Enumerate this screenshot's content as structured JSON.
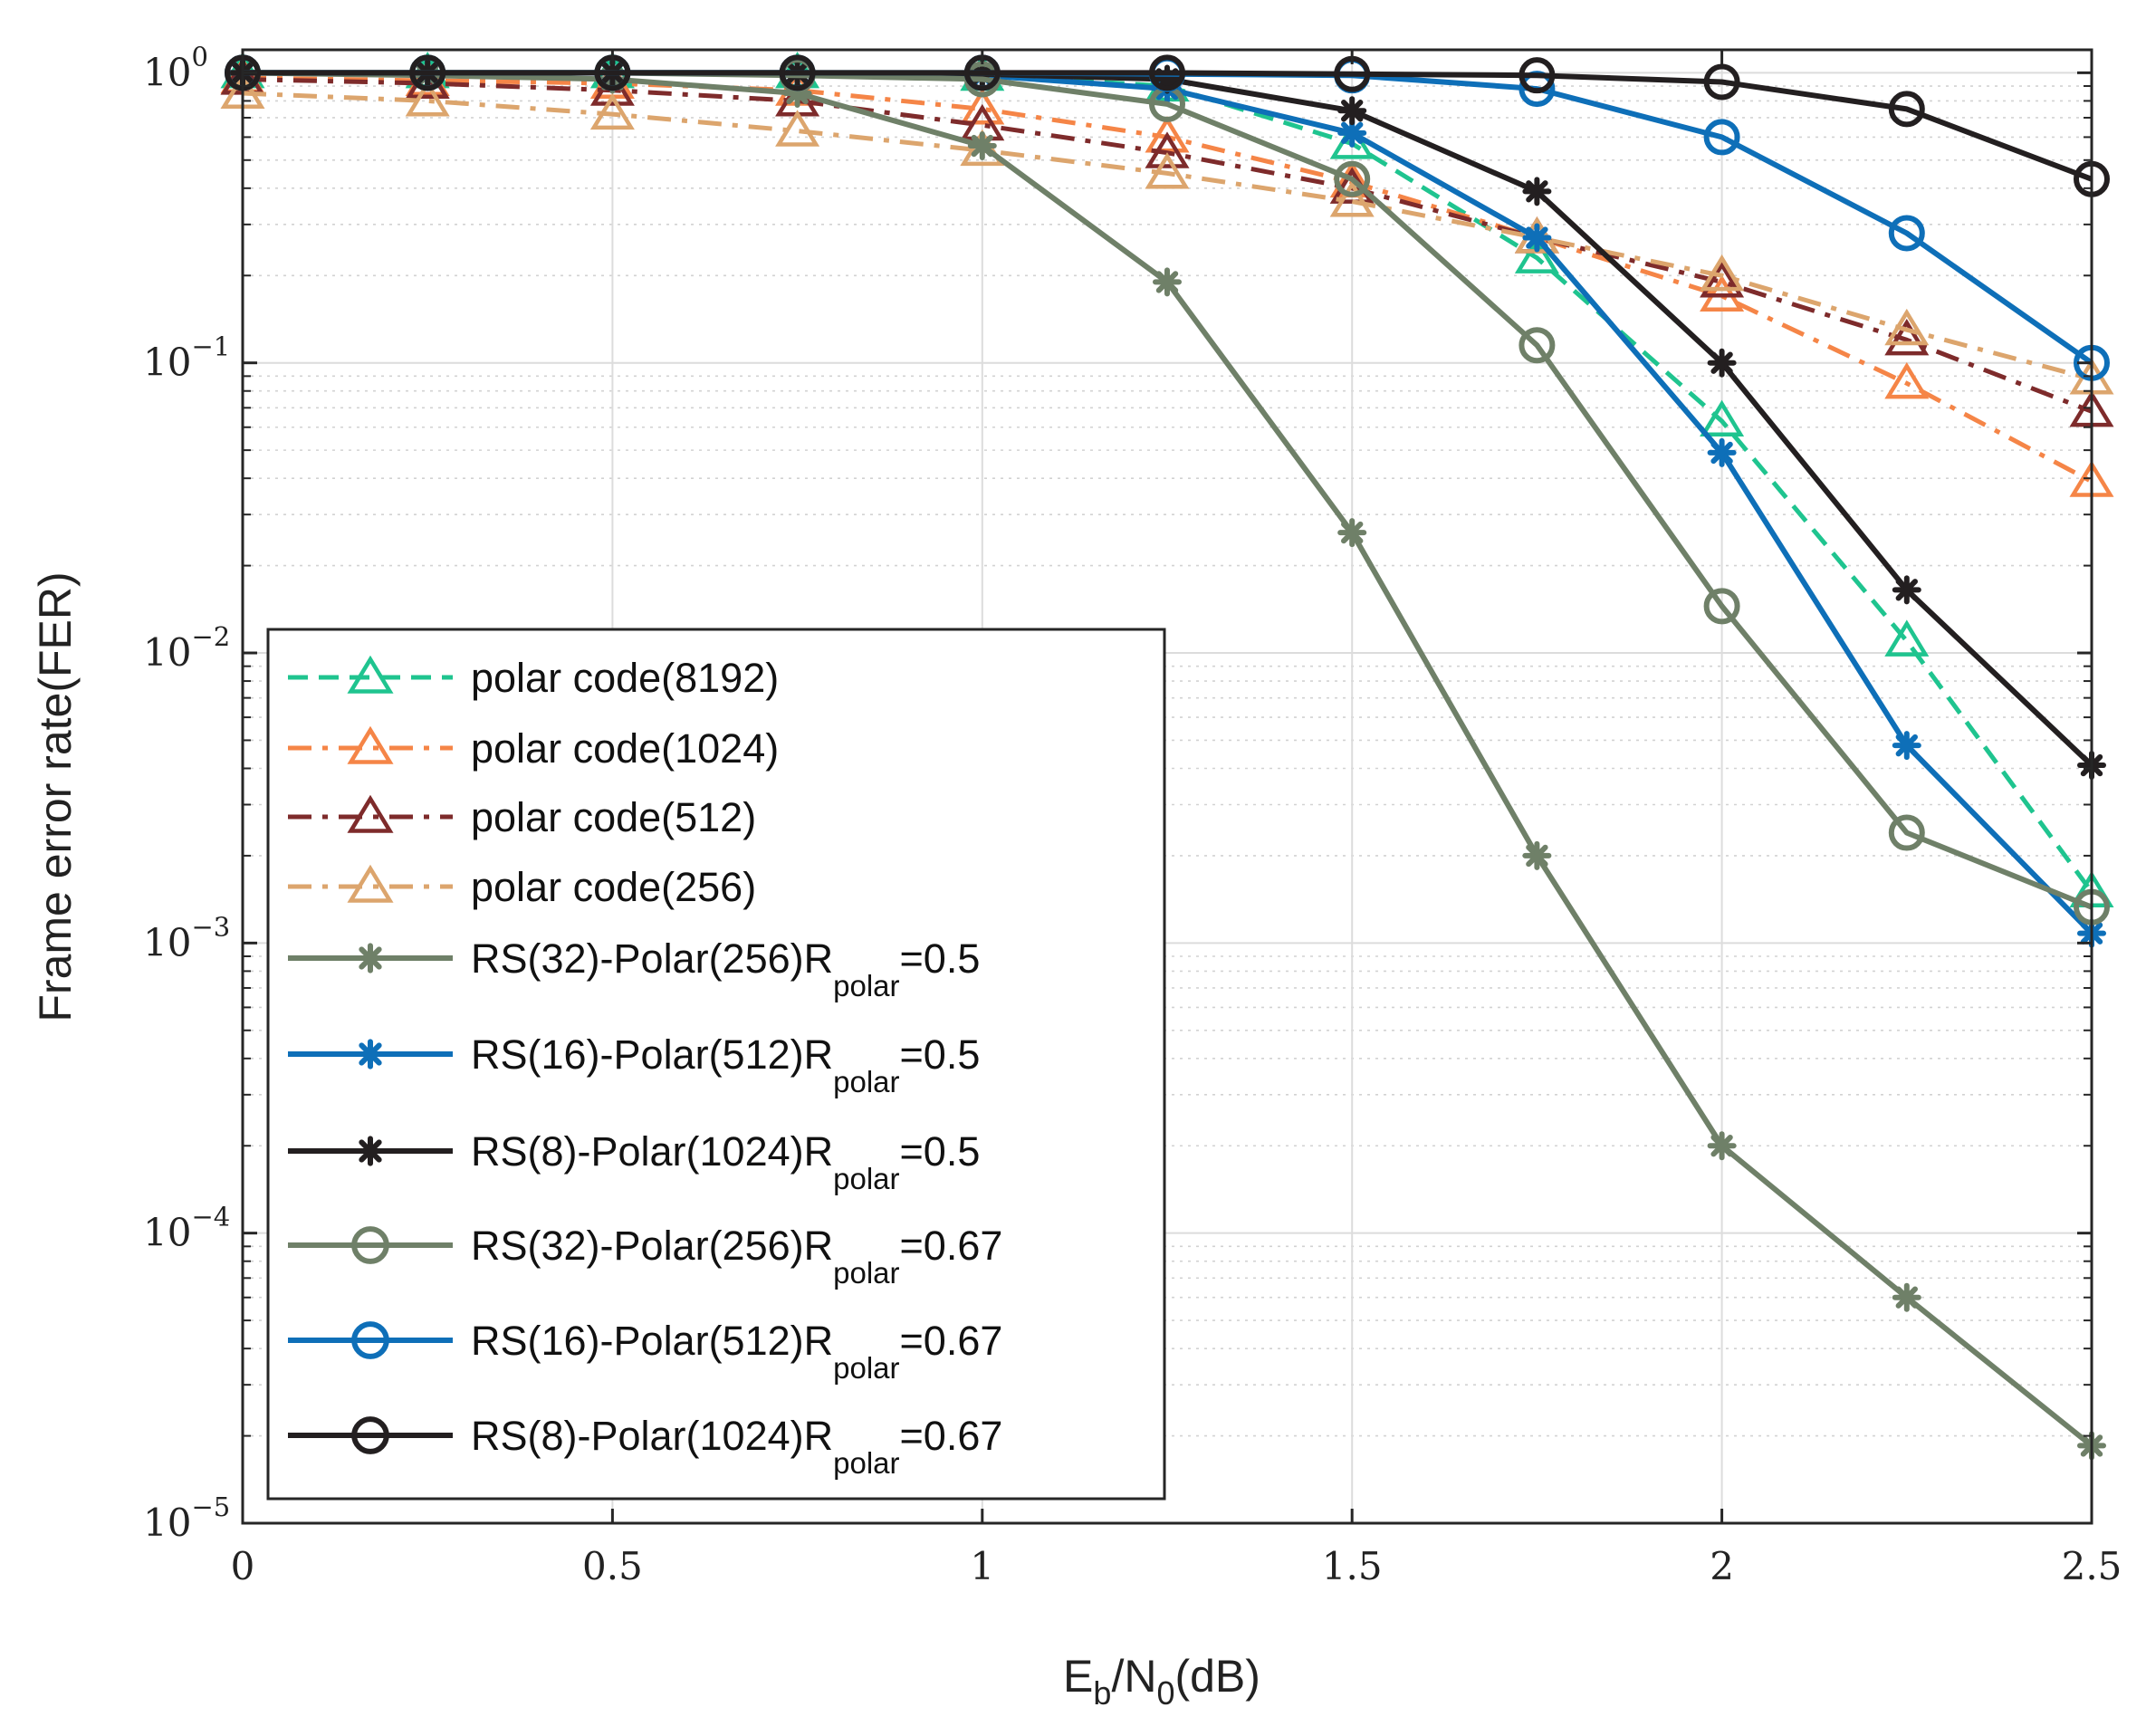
{
  "chart_data": {
    "type": "line",
    "xlabel": {
      "main": "E",
      "sub1": "b",
      "mid": "/N",
      "sub2": "0",
      "tail": "(dB)"
    },
    "ylabel": "Frame error rate(FER)",
    "xlim": [
      0,
      2.5
    ],
    "ylim": [
      1e-05,
      1.2
    ],
    "yscale": "log",
    "grid": true,
    "legend_position": "lower-left",
    "x_ticks": [
      "0",
      "0.5",
      "1",
      "1.5",
      "2",
      "2.5"
    ],
    "y_ticks": [
      {
        "base": "10",
        "exp": "0",
        "value": 1
      },
      {
        "base": "10",
        "exp": "−1",
        "value": 0.1
      },
      {
        "base": "10",
        "exp": "−2",
        "value": 0.01
      },
      {
        "base": "10",
        "exp": "−3",
        "value": 0.001
      },
      {
        "base": "10",
        "exp": "−4",
        "value": 0.0001
      },
      {
        "base": "10",
        "exp": "−5",
        "value": 1e-05
      }
    ],
    "x": [
      0,
      0.25,
      0.5,
      0.75,
      1,
      1.25,
      1.5,
      1.75,
      2,
      2.25,
      2.5
    ],
    "series": [
      {
        "name": "polar code(8192)",
        "label": "polar code(8192)",
        "color": "#1fc48f",
        "dash": "dashed",
        "marker": "triangle",
        "values": [
          1.0,
          1.0,
          1.0,
          1.0,
          0.98,
          0.9,
          0.57,
          0.23,
          0.063,
          0.011,
          0.0015
        ]
      },
      {
        "name": "polar code(1024)",
        "label": "polar code(1024)",
        "color": "#f58547",
        "dash": "dashdot",
        "marker": "triangle",
        "values": [
          0.96,
          0.94,
          0.92,
          0.87,
          0.75,
          0.6,
          0.42,
          0.27,
          0.17,
          0.085,
          0.039
        ]
      },
      {
        "name": "polar code(512)",
        "label": "polar code(512)",
        "color": "#7e2b2b",
        "dash": "dashdot",
        "marker": "triangle",
        "values": [
          0.95,
          0.92,
          0.87,
          0.8,
          0.66,
          0.53,
          0.4,
          0.27,
          0.19,
          0.12,
          0.068
        ]
      },
      {
        "name": "polar code(256)",
        "label": "polar code(256)",
        "color": "#dca56d",
        "dash": "dashdot",
        "marker": "triangle",
        "values": [
          0.85,
          0.8,
          0.72,
          0.63,
          0.54,
          0.45,
          0.36,
          0.27,
          0.2,
          0.13,
          0.088
        ]
      },
      {
        "name": "RS(32)-Polar(256)Rpolar=0.5",
        "label": "RS(32)-Polar(256)R",
        "sub": "polar",
        "tail": "=0.5",
        "color": "#6f8068",
        "dash": "solid",
        "marker": "asterisk",
        "values": [
          1.0,
          0.98,
          0.95,
          0.85,
          0.56,
          0.19,
          0.026,
          0.002,
          0.0002,
          6e-05,
          1.85e-05
        ]
      },
      {
        "name": "RS(16)-Polar(512)Rpolar=0.5",
        "label": "RS(16)-Polar(512)R",
        "sub": "polar",
        "tail": "=0.5",
        "color": "#0e6fb8",
        "dash": "solid",
        "marker": "asterisk",
        "values": [
          1.0,
          1.0,
          1.0,
          1.0,
          0.98,
          0.88,
          0.62,
          0.27,
          0.049,
          0.0048,
          0.00108
        ]
      },
      {
        "name": "RS(8)-Polar(1024)Rpolar=0.5",
        "label": "RS(8)-Polar(1024)R",
        "sub": "polar",
        "tail": "=0.5",
        "color": "#231f20",
        "dash": "solid",
        "marker": "asterisk",
        "values": [
          1.0,
          1.0,
          1.0,
          1.0,
          0.99,
          0.95,
          0.74,
          0.39,
          0.1,
          0.0165,
          0.0041
        ]
      },
      {
        "name": "RS(32)-Polar(256)Rpolar=0.67",
        "label": "RS(32)-Polar(256)R",
        "sub": "polar",
        "tail": "=0.67",
        "color": "#6f8068",
        "dash": "solid",
        "marker": "circle",
        "values": [
          1.0,
          1.0,
          1.0,
          0.98,
          0.95,
          0.78,
          0.43,
          0.115,
          0.0145,
          0.0024,
          0.00133
        ]
      },
      {
        "name": "RS(16)-Polar(512)Rpolar=0.67",
        "label": "RS(16)-Polar(512)R",
        "sub": "polar",
        "tail": "=0.67",
        "color": "#0e6fb8",
        "dash": "solid",
        "marker": "circle",
        "values": [
          1.0,
          1.0,
          1.0,
          1.0,
          1.0,
          0.99,
          0.98,
          0.88,
          0.6,
          0.28,
          0.1
        ]
      },
      {
        "name": "RS(8)-Polar(1024)Rpolar=0.67",
        "label": "RS(8)-Polar(1024)R",
        "sub": "polar",
        "tail": "=0.67",
        "color": "#231f20",
        "dash": "solid",
        "marker": "circle",
        "values": [
          1.0,
          1.0,
          1.0,
          1.0,
          1.0,
          1.0,
          0.99,
          0.98,
          0.93,
          0.75,
          0.43
        ]
      }
    ]
  }
}
